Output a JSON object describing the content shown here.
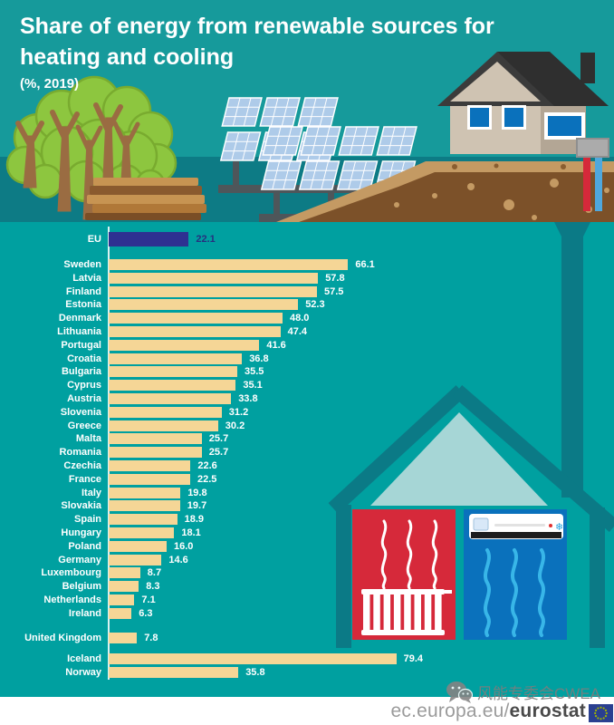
{
  "header": {
    "title_lines": [
      "Share of energy from renewable sources for",
      "heating and cooling"
    ],
    "subtitle": "(%, 2019)"
  },
  "chart_data": {
    "type": "bar",
    "orientation": "horizontal",
    "title": "Share of energy from renewable sources for heating and cooling",
    "subtitle": "(%, 2019)",
    "unit": "%",
    "xlim": [
      0,
      80
    ],
    "bar_color": "#f5d696",
    "groups": [
      {
        "id": "eu",
        "bar_color": "#2e3191",
        "value_color": "#26307f",
        "rows": [
          {
            "label": "EU",
            "value": 22.1,
            "display": "22.1"
          }
        ]
      },
      {
        "id": "member_states",
        "rows": [
          {
            "label": "Sweden",
            "value": 66.1,
            "display": "66.1"
          },
          {
            "label": "Latvia",
            "value": 57.8,
            "display": "57.8"
          },
          {
            "label": "Finland",
            "value": 57.5,
            "display": "57.5"
          },
          {
            "label": "Estonia",
            "value": 52.3,
            "display": "52.3"
          },
          {
            "label": "Denmark",
            "value": 48.0,
            "display": "48.0"
          },
          {
            "label": "Lithuania",
            "value": 47.4,
            "display": "47.4"
          },
          {
            "label": "Portugal",
            "value": 41.6,
            "display": "41.6"
          },
          {
            "label": "Croatia",
            "value": 36.8,
            "display": "36.8"
          },
          {
            "label": "Bulgaria",
            "value": 35.5,
            "display": "35.5"
          },
          {
            "label": "Cyprus",
            "value": 35.1,
            "display": "35.1"
          },
          {
            "label": "Austria",
            "value": 33.8,
            "display": "33.8"
          },
          {
            "label": "Slovenia",
            "value": 31.2,
            "display": "31.2"
          },
          {
            "label": "Greece",
            "value": 30.2,
            "display": "30.2"
          },
          {
            "label": "Malta",
            "value": 25.7,
            "display": "25.7"
          },
          {
            "label": "Romania",
            "value": 25.7,
            "display": "25.7"
          },
          {
            "label": "Czechia",
            "value": 22.6,
            "display": "22.6"
          },
          {
            "label": "France",
            "value": 22.5,
            "display": "22.5"
          },
          {
            "label": "Italy",
            "value": 19.8,
            "display": "19.8"
          },
          {
            "label": "Slovakia",
            "value": 19.7,
            "display": "19.7"
          },
          {
            "label": "Spain",
            "value": 18.9,
            "display": "18.9"
          },
          {
            "label": "Hungary",
            "value": 18.1,
            "display": "18.1"
          },
          {
            "label": "Poland",
            "value": 16.0,
            "display": "16.0"
          },
          {
            "label": "Germany",
            "value": 14.6,
            "display": "14.6"
          },
          {
            "label": "Luxembourg",
            "value": 8.7,
            "display": "8.7"
          },
          {
            "label": "Belgium",
            "value": 8.3,
            "display": "8.3"
          },
          {
            "label": "Netherlands",
            "value": 7.1,
            "display": "7.1"
          },
          {
            "label": "Ireland",
            "value": 6.3,
            "display": "6.3"
          }
        ]
      },
      {
        "id": "united_kingdom",
        "rows": [
          {
            "label": "United Kingdom",
            "value": 7.8,
            "display": "7.8"
          }
        ]
      },
      {
        "id": "efta",
        "rows": [
          {
            "label": "Iceland",
            "value": 79.4,
            "display": "79.4"
          },
          {
            "label": "Norway",
            "value": 35.8,
            "display": "35.8"
          }
        ]
      }
    ]
  },
  "footer": {
    "watermark_text": "风能专委会CWEA",
    "url_prefix": "ec.europa.eu/",
    "url_highlight": "eurostat"
  },
  "icons": {
    "snowflake": "❄"
  },
  "colors": {
    "background_top": "#169a9b",
    "background_ground": "#0d7b85",
    "background_chart": "#00a0a0",
    "bar": "#f5d696",
    "eu_bar": "#2e3191",
    "house_outline": "#0b7a86",
    "heating_panel": "#d6293a",
    "cooling_panel": "#0a71bc"
  }
}
